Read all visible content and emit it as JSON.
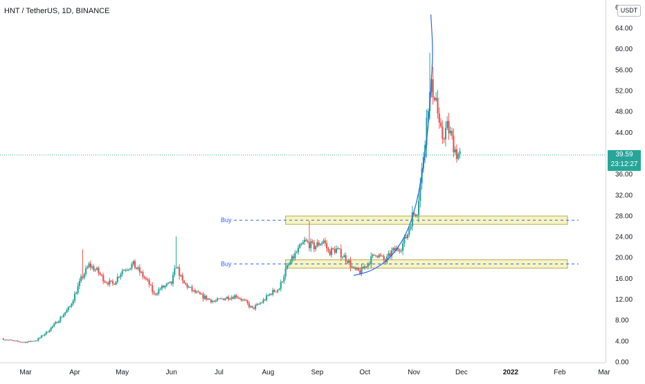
{
  "header": {
    "title": "HNT / TetherUS, 1D, BINANCE"
  },
  "price_scale": {
    "unit": "USDT",
    "last_price": "39.59",
    "countdown": "23:12:27",
    "top_cut_label": "6"
  },
  "colors": {
    "up": "#26a69a",
    "down": "#ef5350",
    "wick": "#7b8a9a",
    "zone_fill": "#f7f3c1",
    "zone_stroke": "#b8ad52",
    "curve": "#2962ff",
    "last_line": "#26a69a"
  },
  "chart_data": {
    "type": "candlestick",
    "ylim": [
      0,
      68
    ],
    "y_ticks": [
      "0.00",
      "4.00",
      "8.00",
      "12.00",
      "16.00",
      "20.00",
      "24.00",
      "28.00",
      "32.00",
      "36.00",
      "44.00",
      "48.00",
      "52.00",
      "56.00",
      "60.00",
      "64.00"
    ],
    "x_labels": [
      {
        "label": "Mar",
        "date": "2021-03-01"
      },
      {
        "label": "Apr",
        "date": "2021-04-01"
      },
      {
        "label": "May",
        "date": "2021-05-01"
      },
      {
        "label": "Jun",
        "date": "2021-06-01"
      },
      {
        "label": "Jul",
        "date": "2021-07-01"
      },
      {
        "label": "Aug",
        "date": "2021-08-01"
      },
      {
        "label": "Sep",
        "date": "2021-09-01"
      },
      {
        "label": "Oct",
        "date": "2021-10-01"
      },
      {
        "label": "Nov",
        "date": "2021-11-01"
      },
      {
        "label": "Dec",
        "date": "2021-12-01"
      },
      {
        "label": "2022",
        "date": "2022-01-01"
      },
      {
        "label": "Feb",
        "date": "2022-02-01"
      },
      {
        "label": "Mar",
        "date": "2022-03-01"
      }
    ],
    "series_start_date": "2021-02-14",
    "series_end_date": "2021-11-30",
    "close_path": [
      [
        "2021-02-14",
        4.4
      ],
      [
        "2021-02-22",
        3.9
      ],
      [
        "2021-03-01",
        3.7
      ],
      [
        "2021-03-08",
        4.1
      ],
      [
        "2021-03-15",
        5.8
      ],
      [
        "2021-03-22",
        8.0
      ],
      [
        "2021-03-29",
        10.5
      ],
      [
        "2021-04-05",
        15.8
      ],
      [
        "2021-04-10",
        18.5
      ],
      [
        "2021-04-15",
        17.4
      ],
      [
        "2021-04-20",
        15.5
      ],
      [
        "2021-04-25",
        14.8
      ],
      [
        "2021-05-01",
        17.5
      ],
      [
        "2021-05-08",
        18.6
      ],
      [
        "2021-05-13",
        16.8
      ],
      [
        "2021-05-18",
        14.8
      ],
      [
        "2021-05-21",
        12.8
      ],
      [
        "2021-05-25",
        14.0
      ],
      [
        "2021-06-01",
        15.0
      ],
      [
        "2021-06-04",
        18.5
      ],
      [
        "2021-06-08",
        15.2
      ],
      [
        "2021-06-15",
        13.4
      ],
      [
        "2021-06-21",
        12.4
      ],
      [
        "2021-06-28",
        11.5
      ],
      [
        "2021-07-05",
        12.2
      ],
      [
        "2021-07-12",
        12.6
      ],
      [
        "2021-07-18",
        11.3
      ],
      [
        "2021-07-22",
        10.1
      ],
      [
        "2021-07-28",
        11.4
      ],
      [
        "2021-08-03",
        13.2
      ],
      [
        "2021-08-08",
        14.0
      ],
      [
        "2021-08-12",
        17.5
      ],
      [
        "2021-08-18",
        20.5
      ],
      [
        "2021-08-24",
        23.0
      ],
      [
        "2021-08-30",
        22.0
      ],
      [
        "2021-09-05",
        23.2
      ],
      [
        "2021-09-08",
        21.0
      ],
      [
        "2021-09-13",
        21.5
      ],
      [
        "2021-09-20",
        19.5
      ],
      [
        "2021-09-24",
        17.5
      ],
      [
        "2021-09-28",
        17.2
      ],
      [
        "2021-10-02",
        18.5
      ],
      [
        "2021-10-08",
        20.8
      ],
      [
        "2021-10-14",
        19.2
      ],
      [
        "2021-10-18",
        21.0
      ],
      [
        "2021-10-24",
        22.0
      ],
      [
        "2021-10-28",
        24.5
      ],
      [
        "2021-10-31",
        28.0
      ],
      [
        "2021-11-03",
        29.0
      ],
      [
        "2021-11-06",
        36.5
      ],
      [
        "2021-11-08",
        43.0
      ],
      [
        "2021-11-10",
        49.5
      ],
      [
        "2021-11-12",
        52.5
      ],
      [
        "2021-11-15",
        50.5
      ],
      [
        "2021-11-17",
        44.5
      ],
      [
        "2021-11-19",
        43.0
      ],
      [
        "2021-11-22",
        45.0
      ],
      [
        "2021-11-24",
        43.5
      ],
      [
        "2021-11-26",
        41.5
      ],
      [
        "2021-11-28",
        39.8
      ],
      [
        "2021-11-30",
        39.59
      ]
    ],
    "spike_highs": [
      [
        "2021-04-06",
        21.5
      ],
      [
        "2021-06-04",
        24.0
      ],
      [
        "2021-08-27",
        27.0
      ],
      [
        "2021-11-11",
        59.2
      ],
      [
        "2021-11-13",
        56.5
      ]
    ],
    "buy_zones": [
      {
        "label": "Buy",
        "low": 26.3,
        "high": 27.9,
        "mid": 27.1,
        "start_date": "2021-08-12"
      },
      {
        "label": "Buy",
        "low": 17.9,
        "high": 19.5,
        "mid": 18.7,
        "start_date": "2021-08-12"
      }
    ],
    "parabolic_curve": [
      [
        "2021-09-24",
        16.5
      ],
      [
        "2021-10-05",
        17.3
      ],
      [
        "2021-10-15",
        19.3
      ],
      [
        "2021-10-22",
        21.8
      ],
      [
        "2021-10-28",
        25.0
      ],
      [
        "2021-11-02",
        29.5
      ],
      [
        "2021-11-06",
        35.5
      ],
      [
        "2021-11-09",
        42.0
      ],
      [
        "2021-11-11",
        48.5
      ],
      [
        "2021-11-12",
        54.0
      ],
      [
        "2021-11-13",
        59.5
      ],
      [
        "2021-11-13",
        66.5
      ]
    ]
  }
}
